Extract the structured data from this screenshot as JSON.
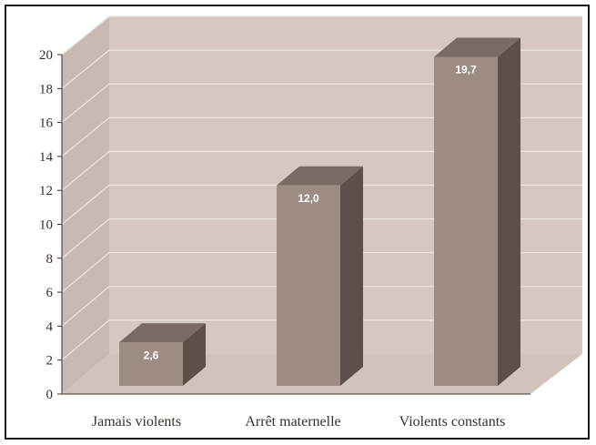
{
  "chart_data": {
    "type": "bar",
    "title": "",
    "xlabel": "",
    "ylabel": "",
    "categories": [
      "Jamais violents",
      "Arrêt maternelle",
      "Violents constants"
    ],
    "values": [
      2.6,
      12.0,
      19.7
    ],
    "data_labels": [
      "2,6",
      "12,0",
      "19,7"
    ],
    "yticks": [
      "0",
      "2",
      "4",
      "6",
      "8",
      "10",
      "12",
      "14",
      "16",
      "18",
      "20"
    ],
    "ylim": [
      0,
      20
    ],
    "grid": true,
    "legend": "none",
    "style": "3d",
    "colors": {
      "bar_front": "#9c8c84",
      "bar_top": "#7a6a64",
      "bar_side": "#5e4f4b",
      "back_wall": "#d4c8c0",
      "side_wall": "#c8bab2",
      "floor": "#cfc3bb",
      "gridline": "#ece6e1"
    }
  }
}
